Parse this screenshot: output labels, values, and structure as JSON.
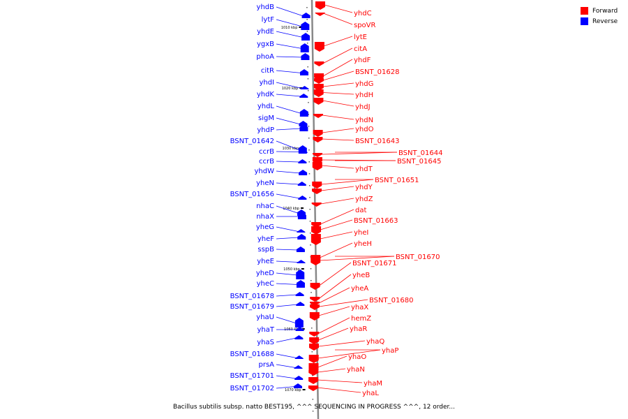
{
  "colors": {
    "forward": "#ff0000",
    "reverse": "#0000ff",
    "axis": "#888888"
  },
  "legend": [
    {
      "label": "Forward",
      "color": "#ff0000"
    },
    {
      "label": "Reverse",
      "color": "#0000ff"
    }
  ],
  "caption": "Bacillus subtilis subsp. natto BEST195, ^^^ SEQUENCING IN PROGRESS ^^^, 12 order...",
  "ticks": [
    "1010 kbp",
    "1020 kbp",
    "1030 kbp",
    "1040 kbp",
    "1050 kbp",
    "1060 kbp",
    "1070 kbp"
  ],
  "reverse_genes": [
    "yhdB",
    "lytF",
    "yhdE",
    "ygxB",
    "phoA",
    "citR",
    "yhdI",
    "yhdK",
    "yhdL",
    "sigM",
    "yhdP",
    "BSNT_01642",
    "ccrB",
    "ccrB",
    "yhdW",
    "yheN",
    "BSNT_01656",
    "nhaC",
    "nhaX",
    "yheG",
    "yheF",
    "sspB",
    "yheE",
    "yheD",
    "yheC",
    "BSNT_01678",
    "BSNT_01679",
    "yhaU",
    "yhaT",
    "yhaS",
    "BSNT_01688",
    "prsA",
    "BSNT_01701",
    "BSNT_01702"
  ],
  "forward_genes": [
    "yhdC",
    "spoVR",
    "lytE",
    "citA",
    "yhdF",
    "BSNT_01628",
    "yhdG",
    "yhdH",
    "yhdJ",
    "yhdN",
    "yhdO",
    "BSNT_01643",
    "BSNT_01644",
    "BSNT_01645",
    "yhdT",
    "BSNT_01651",
    "yhdY",
    "yhdZ",
    "dat",
    "BSNT_01663",
    "yheI",
    "yheH",
    "BSNT_01670",
    "BSNT_01671",
    "yheB",
    "yheA",
    "BSNT_01680",
    "yhaX",
    "hemZ",
    "yhaR",
    "yhaQ",
    "yhaP",
    "yhaO",
    "yhaN",
    "yhaM",
    "yhaL"
  ]
}
